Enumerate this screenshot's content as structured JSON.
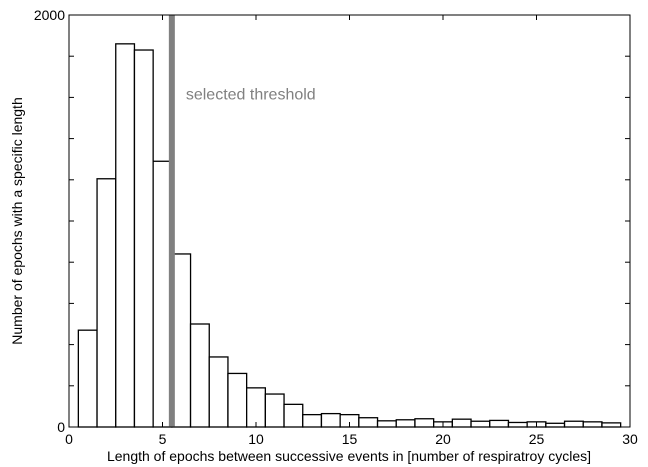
{
  "chart_data": {
    "type": "bar",
    "subtype": "histogram",
    "title": "",
    "xlabel": "Length of epochs between successive events in [number of respiratroy cycles]",
    "ylabel": "Number of epochs with a specific length",
    "xlim": [
      0,
      30
    ],
    "ylim": [
      0,
      2000
    ],
    "xticks": [
      0,
      5,
      10,
      15,
      20,
      25,
      30
    ],
    "yticks": [
      0,
      2000
    ],
    "bin_edges": [
      0.5,
      1.5,
      2.5,
      3.5,
      4.5,
      5.5,
      6.5,
      7.5,
      8.5,
      9.5,
      10.5,
      11.5,
      12.5,
      13.5,
      14.5,
      15.5,
      16.5,
      17.5,
      18.5,
      19.5,
      20.5,
      21.5,
      22.5,
      23.5,
      24.5,
      25.5,
      26.5,
      27.5,
      28.5,
      29.5
    ],
    "values": [
      470,
      1205,
      1860,
      1830,
      1290,
      840,
      500,
      340,
      260,
      190,
      160,
      110,
      60,
      65,
      60,
      45,
      30,
      35,
      40,
      25,
      38,
      28,
      32,
      22,
      25,
      18,
      28,
      25,
      20
    ],
    "bar_fill": "#ffffff",
    "bar_edge": "#000000",
    "grid": false,
    "threshold": {
      "x": 5.5,
      "label": "selected threshold",
      "color": "#808080"
    }
  }
}
